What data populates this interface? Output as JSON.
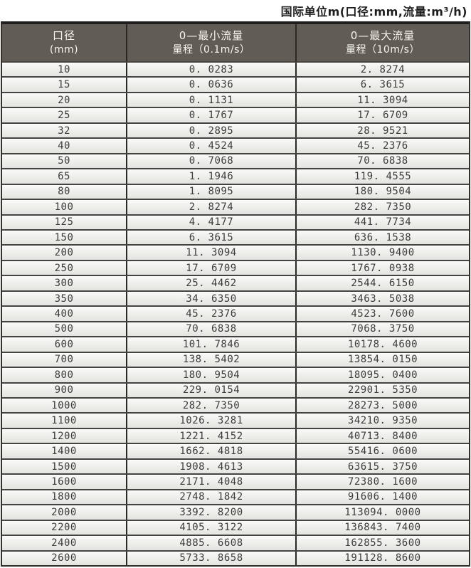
{
  "title": "国际单位m(口径:mm,流量:m³/h)",
  "colors": {
    "header_bg": "#615c55",
    "header_text": "#f6f5f2",
    "border_dark": "#34312d",
    "row_separator": "#454340",
    "row_bg_top": "#fafaf8",
    "row_bg_bottom": "#e4e4e1",
    "cell_text": "#3d3c3a",
    "title_text": "#1e1e1e"
  },
  "chart_data": {
    "type": "table",
    "title": "国际单位m(口径:mm,流量:m³/h)",
    "columns": [
      {
        "line1": "口径",
        "line2": "(mm)"
      },
      {
        "line1": "0—最小流量",
        "line2": "量程（0.1m/s）"
      },
      {
        "line1": "0—最大流量",
        "line2": "量程（10m/s）"
      }
    ],
    "column_keys": [
      "diameter_mm",
      "min_flow_range_0.1m_per_s",
      "max_flow_range_10m_per_s"
    ],
    "rows": [
      [
        "10",
        "0.0283",
        "2.8274"
      ],
      [
        "15",
        "0.0636",
        "6.3615"
      ],
      [
        "20",
        "0.1131",
        "11.3094"
      ],
      [
        "25",
        "0.1767",
        "17.6709"
      ],
      [
        "32",
        "0.2895",
        "28.9521"
      ],
      [
        "40",
        "0.4524",
        "45.2376"
      ],
      [
        "50",
        "0.7068",
        "70.6838"
      ],
      [
        "65",
        "1.1946",
        "119.4555"
      ],
      [
        "80",
        "1.8095",
        "180.9504"
      ],
      [
        "100",
        "2.8274",
        "282.7350"
      ],
      [
        "125",
        "4.4177",
        "441.7734"
      ],
      [
        "150",
        "6.3615",
        "636.1538"
      ],
      [
        "200",
        "11.3094",
        "1130.9400"
      ],
      [
        "250",
        "17.6709",
        "1767.0938"
      ],
      [
        "300",
        "25.4462",
        "2544.6150"
      ],
      [
        "350",
        "34.6350",
        "3463.5038"
      ],
      [
        "400",
        "45.2376",
        "4523.7600"
      ],
      [
        "500",
        "70.6838",
        "7068.3750"
      ],
      [
        "600",
        "101.7846",
        "10178.4600"
      ],
      [
        "700",
        "138.5402",
        "13854.0150"
      ],
      [
        "800",
        "180.9504",
        "18095.0400"
      ],
      [
        "900",
        "229.0154",
        "22901.5350"
      ],
      [
        "1000",
        "282.7350",
        "28273.5000"
      ],
      [
        "1100",
        "1026.3281",
        "34210.9350"
      ],
      [
        "1200",
        "1221.4152",
        "40713.8400"
      ],
      [
        "1400",
        "1662.4818",
        "55416.0600"
      ],
      [
        "1500",
        "1908.4613",
        "63615.3750"
      ],
      [
        "1600",
        "2171.4048",
        "72380.1600"
      ],
      [
        "1800",
        "2748.1842",
        "91606.1400"
      ],
      [
        "2000",
        "3392.8200",
        "113094.0000"
      ],
      [
        "2200",
        "4105.3122",
        "136843.7400"
      ],
      [
        "2400",
        "4885.6608",
        "162855.3600"
      ],
      [
        "2600",
        "5733.8658",
        "191128.8600"
      ]
    ]
  }
}
